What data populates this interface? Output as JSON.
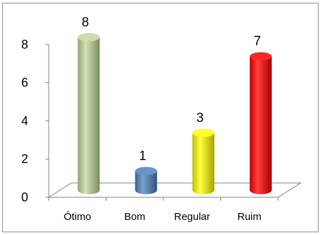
{
  "chart_data": {
    "type": "bar",
    "style": "3d-cylinder",
    "categories": [
      "Ótimo",
      "Bom",
      "Regular",
      "Ruim"
    ],
    "values": [
      8,
      1,
      3,
      7
    ],
    "data_labels": [
      "8",
      "1",
      "3",
      "7"
    ],
    "colors": [
      "#c4d79b",
      "#4f81bd",
      "#ffff00",
      "#ff0000"
    ],
    "ylim": [
      0,
      8
    ],
    "yticks": [
      0,
      2,
      4,
      6,
      8
    ],
    "ytick_labels": [
      "0",
      "2",
      "4",
      "6",
      "8"
    ],
    "grid": false,
    "legend": "none",
    "title": "",
    "xlabel": "",
    "ylabel": ""
  }
}
